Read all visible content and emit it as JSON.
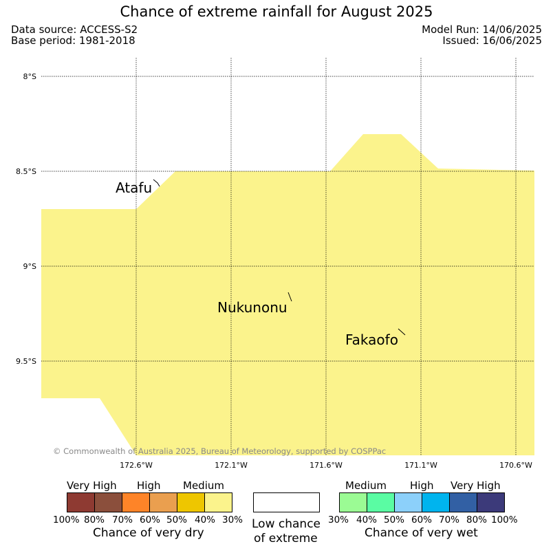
{
  "header": {
    "title": "Chance of extreme rainfall for August 2025",
    "data_source": "Data source: ACCESS-S2",
    "base_period": "Base period: 1981-2018",
    "model_run": "Model Run: 14/06/2025",
    "issued": "Issued: 16/06/2025"
  },
  "map": {
    "lat_labels": [
      "8°S",
      "8.5°S",
      "9°S",
      "9.5°S"
    ],
    "lon_labels": [
      "172.6°W",
      "172.1°W",
      "171.6°W",
      "171.1°W",
      "170.6°W"
    ],
    "places": [
      "Atafu",
      "Nukunonu",
      "Fakaofo"
    ],
    "copyright": "© Commonwealth of Australia 2025, Bureau of Meteorology, supported by COSPPac",
    "shading_category": "30% to 40% chance of very dry",
    "shading_color": "#fbf38c"
  },
  "legend": {
    "dry": {
      "categories": [
        "Very High",
        "High",
        "Medium"
      ],
      "colors": [
        "#8e3a32",
        "#8b4f3c",
        "#fe8428",
        "#ea9f4f",
        "#eec600",
        "#fbf38c"
      ],
      "ticks": [
        "100%",
        "80%",
        "70%",
        "60%",
        "50%",
        "40%",
        "30%"
      ],
      "caption": "Chance of very dry"
    },
    "low": {
      "line1": "Low chance",
      "line2": "of extreme",
      "color": "#ffffff"
    },
    "wet": {
      "categories": [
        "Medium",
        "High",
        "Very High"
      ],
      "colors": [
        "#9bfb94",
        "#5afca3",
        "#8cd0fa",
        "#00b4ee",
        "#3260a4",
        "#3c3a7a"
      ],
      "ticks": [
        "30%",
        "40%",
        "50%",
        "60%",
        "70%",
        "80%",
        "100%"
      ],
      "caption": "Chance of very wet"
    }
  }
}
